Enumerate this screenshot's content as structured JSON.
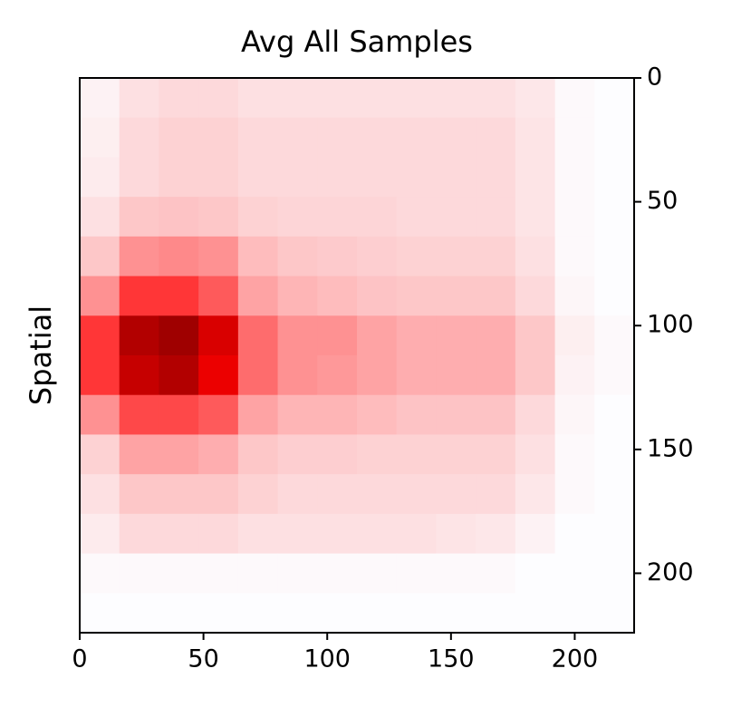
{
  "chart_data": {
    "type": "heatmap",
    "title": "Avg All Samples",
    "ylabel": "Spatial",
    "colormap": "seismic",
    "y_axis_side": "right",
    "x": [
      8,
      24,
      40,
      56,
      72,
      88,
      104,
      120,
      136,
      152,
      168,
      184,
      200,
      216
    ],
    "y": [
      8,
      24,
      40,
      56,
      72,
      88,
      104,
      120,
      136,
      152,
      168,
      184,
      200,
      216
    ],
    "values": [
      [
        0.03,
        0.08,
        0.1,
        0.1,
        0.08,
        0.08,
        0.08,
        0.08,
        0.08,
        0.08,
        0.08,
        0.06,
        0.01,
        0
      ],
      [
        0.04,
        0.1,
        0.12,
        0.12,
        0.1,
        0.1,
        0.1,
        0.1,
        0.1,
        0.1,
        0.1,
        0.07,
        0.01,
        0
      ],
      [
        0.05,
        0.1,
        0.12,
        0.12,
        0.1,
        0.1,
        0.1,
        0.1,
        0.1,
        0.1,
        0.1,
        0.07,
        0.01,
        0
      ],
      [
        0.08,
        0.15,
        0.16,
        0.15,
        0.12,
        0.11,
        0.11,
        0.11,
        0.1,
        0.1,
        0.1,
        0.07,
        0.01,
        0
      ],
      [
        0.15,
        0.3,
        0.32,
        0.3,
        0.18,
        0.15,
        0.14,
        0.13,
        0.12,
        0.12,
        0.12,
        0.08,
        0.01,
        0
      ],
      [
        0.3,
        0.55,
        0.55,
        0.45,
        0.25,
        0.2,
        0.18,
        0.16,
        0.15,
        0.15,
        0.15,
        0.1,
        0.02,
        0
      ],
      [
        0.55,
        0.9,
        0.95,
        0.8,
        0.4,
        0.3,
        0.3,
        0.25,
        0.22,
        0.22,
        0.22,
        0.15,
        0.04,
        0.01
      ],
      [
        0.55,
        0.85,
        0.9,
        0.75,
        0.4,
        0.3,
        0.28,
        0.25,
        0.22,
        0.22,
        0.22,
        0.15,
        0.03,
        0.01
      ],
      [
        0.3,
        0.5,
        0.5,
        0.45,
        0.25,
        0.2,
        0.2,
        0.18,
        0.16,
        0.16,
        0.16,
        0.1,
        0.02,
        0
      ],
      [
        0.12,
        0.25,
        0.25,
        0.22,
        0.15,
        0.13,
        0.13,
        0.12,
        0.12,
        0.12,
        0.12,
        0.08,
        0.01,
        0
      ],
      [
        0.08,
        0.15,
        0.15,
        0.15,
        0.12,
        0.1,
        0.1,
        0.1,
        0.1,
        0.1,
        0.1,
        0.06,
        0.01,
        0
      ],
      [
        0.05,
        0.1,
        0.1,
        0.1,
        0.08,
        0.08,
        0.08,
        0.08,
        0.08,
        0.07,
        0.06,
        0.03,
        0,
        0
      ],
      [
        0.01,
        0.01,
        0.01,
        0.01,
        0.01,
        0.01,
        0.01,
        0.01,
        0.01,
        0.01,
        0.01,
        0,
        0,
        0
      ],
      [
        0,
        0,
        0,
        0,
        0,
        0,
        0,
        0,
        0,
        0,
        0,
        0,
        0,
        0
      ]
    ],
    "xlim": [
      0,
      224
    ],
    "ylim": [
      224,
      0
    ],
    "xticks": [
      0,
      50,
      100,
      150,
      200
    ],
    "yticks": [
      0,
      50,
      100,
      150,
      200
    ]
  }
}
